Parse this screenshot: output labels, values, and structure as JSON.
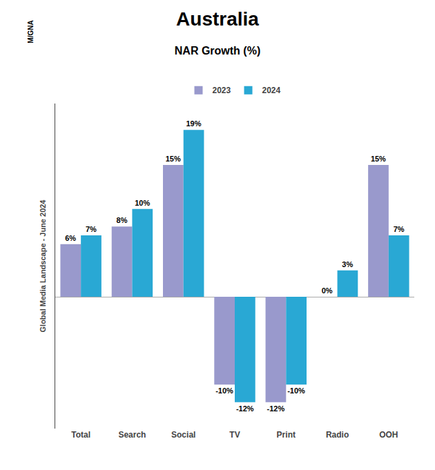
{
  "chart_data": {
    "type": "bar",
    "title": "Australia",
    "subtitle": "NAR Growth (%)",
    "ylabel": "Global Media Landscape - June 2024",
    "annotations": [
      "M/GNA"
    ],
    "categories": [
      "Total",
      "Search",
      "Social",
      "TV",
      "Print",
      "Radio",
      "OOH"
    ],
    "series": [
      {
        "name": "2023",
        "color": "#9999cc",
        "values": [
          6,
          8,
          15,
          -10,
          -12,
          0,
          15
        ],
        "value_labels": [
          "6%",
          "8%",
          "15%",
          "-10%",
          "-12%",
          "0%",
          "15%"
        ]
      },
      {
        "name": "2024",
        "color": "#29a8d4",
        "values": [
          7,
          10,
          19,
          -12,
          -10,
          3,
          7
        ],
        "value_labels": [
          "7%",
          "10%",
          "19%",
          "-12%",
          "-10%",
          "3%",
          "7%"
        ]
      }
    ],
    "ylim": [
      -15,
      22
    ],
    "grid": false,
    "legend": "upper center",
    "data_labels": true,
    "tick_labels": "x"
  }
}
